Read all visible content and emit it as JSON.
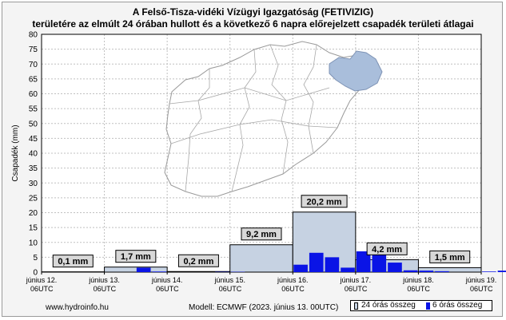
{
  "chart_data": {
    "type": "bar",
    "title": "A Felső-Tisza-vidéki Vízügyi Igazgatóság (FETIVIZIG)",
    "subtitle": "területére az elmúlt 24 órában hullott és a következő 6 napra előrejelzett csapadék területi átlagai",
    "ylabel": "Csapadék (mm)",
    "ylim": [
      0,
      80
    ],
    "yticks": [
      0,
      5,
      10,
      15,
      20,
      25,
      30,
      35,
      40,
      45,
      50,
      55,
      60,
      65,
      70,
      75,
      80
    ],
    "grid": true,
    "x_ticks": [
      {
        "line1": "június 12.",
        "line2": "06UTC"
      },
      {
        "line1": "június 13.",
        "line2": "06UTC"
      },
      {
        "line1": "június 14.",
        "line2": "06UTC"
      },
      {
        "line1": "június 15.",
        "line2": "06UTC"
      },
      {
        "line1": "június 16.",
        "line2": "06UTC"
      },
      {
        "line1": "június 17.",
        "line2": "06UTC"
      },
      {
        "line1": "június 18.",
        "line2": "06UTC"
      },
      {
        "line1": "június 19.",
        "line2": "06UTC"
      }
    ],
    "series": [
      {
        "name": "24 órás összeg",
        "color": "#c6d2e2",
        "values": [
          0.1,
          1.7,
          0.2,
          9.2,
          20.2,
          4.2,
          1.5
        ],
        "labels": [
          "0,1 mm",
          "1,7 mm",
          "0,2 mm",
          "9,2 mm",
          "20,2 mm",
          "4,2 mm",
          "1,5 mm"
        ]
      },
      {
        "name": "6 órás összeg",
        "color": "#0a14e6",
        "values": [
          0,
          0,
          0,
          0,
          0,
          0,
          1.5,
          0.2,
          0,
          0,
          0,
          0.1,
          0.1,
          0,
          0,
          0,
          2.5,
          6.5,
          5.0,
          1.5,
          7.0,
          5.8,
          3.2,
          0.6,
          0.5,
          0.3,
          0,
          0,
          0.2,
          0.5,
          0.4,
          0.4
        ]
      }
    ],
    "legend_position": "bottom-right"
  },
  "footer": {
    "source": "www.hydroinfo.hu",
    "model": "Modell: ECMWF (2023. június 13. 00UTC)"
  },
  "colors": {
    "background": "#f4f4f4",
    "map_fill": "#a9bedb",
    "border": "#9a9a9a"
  }
}
